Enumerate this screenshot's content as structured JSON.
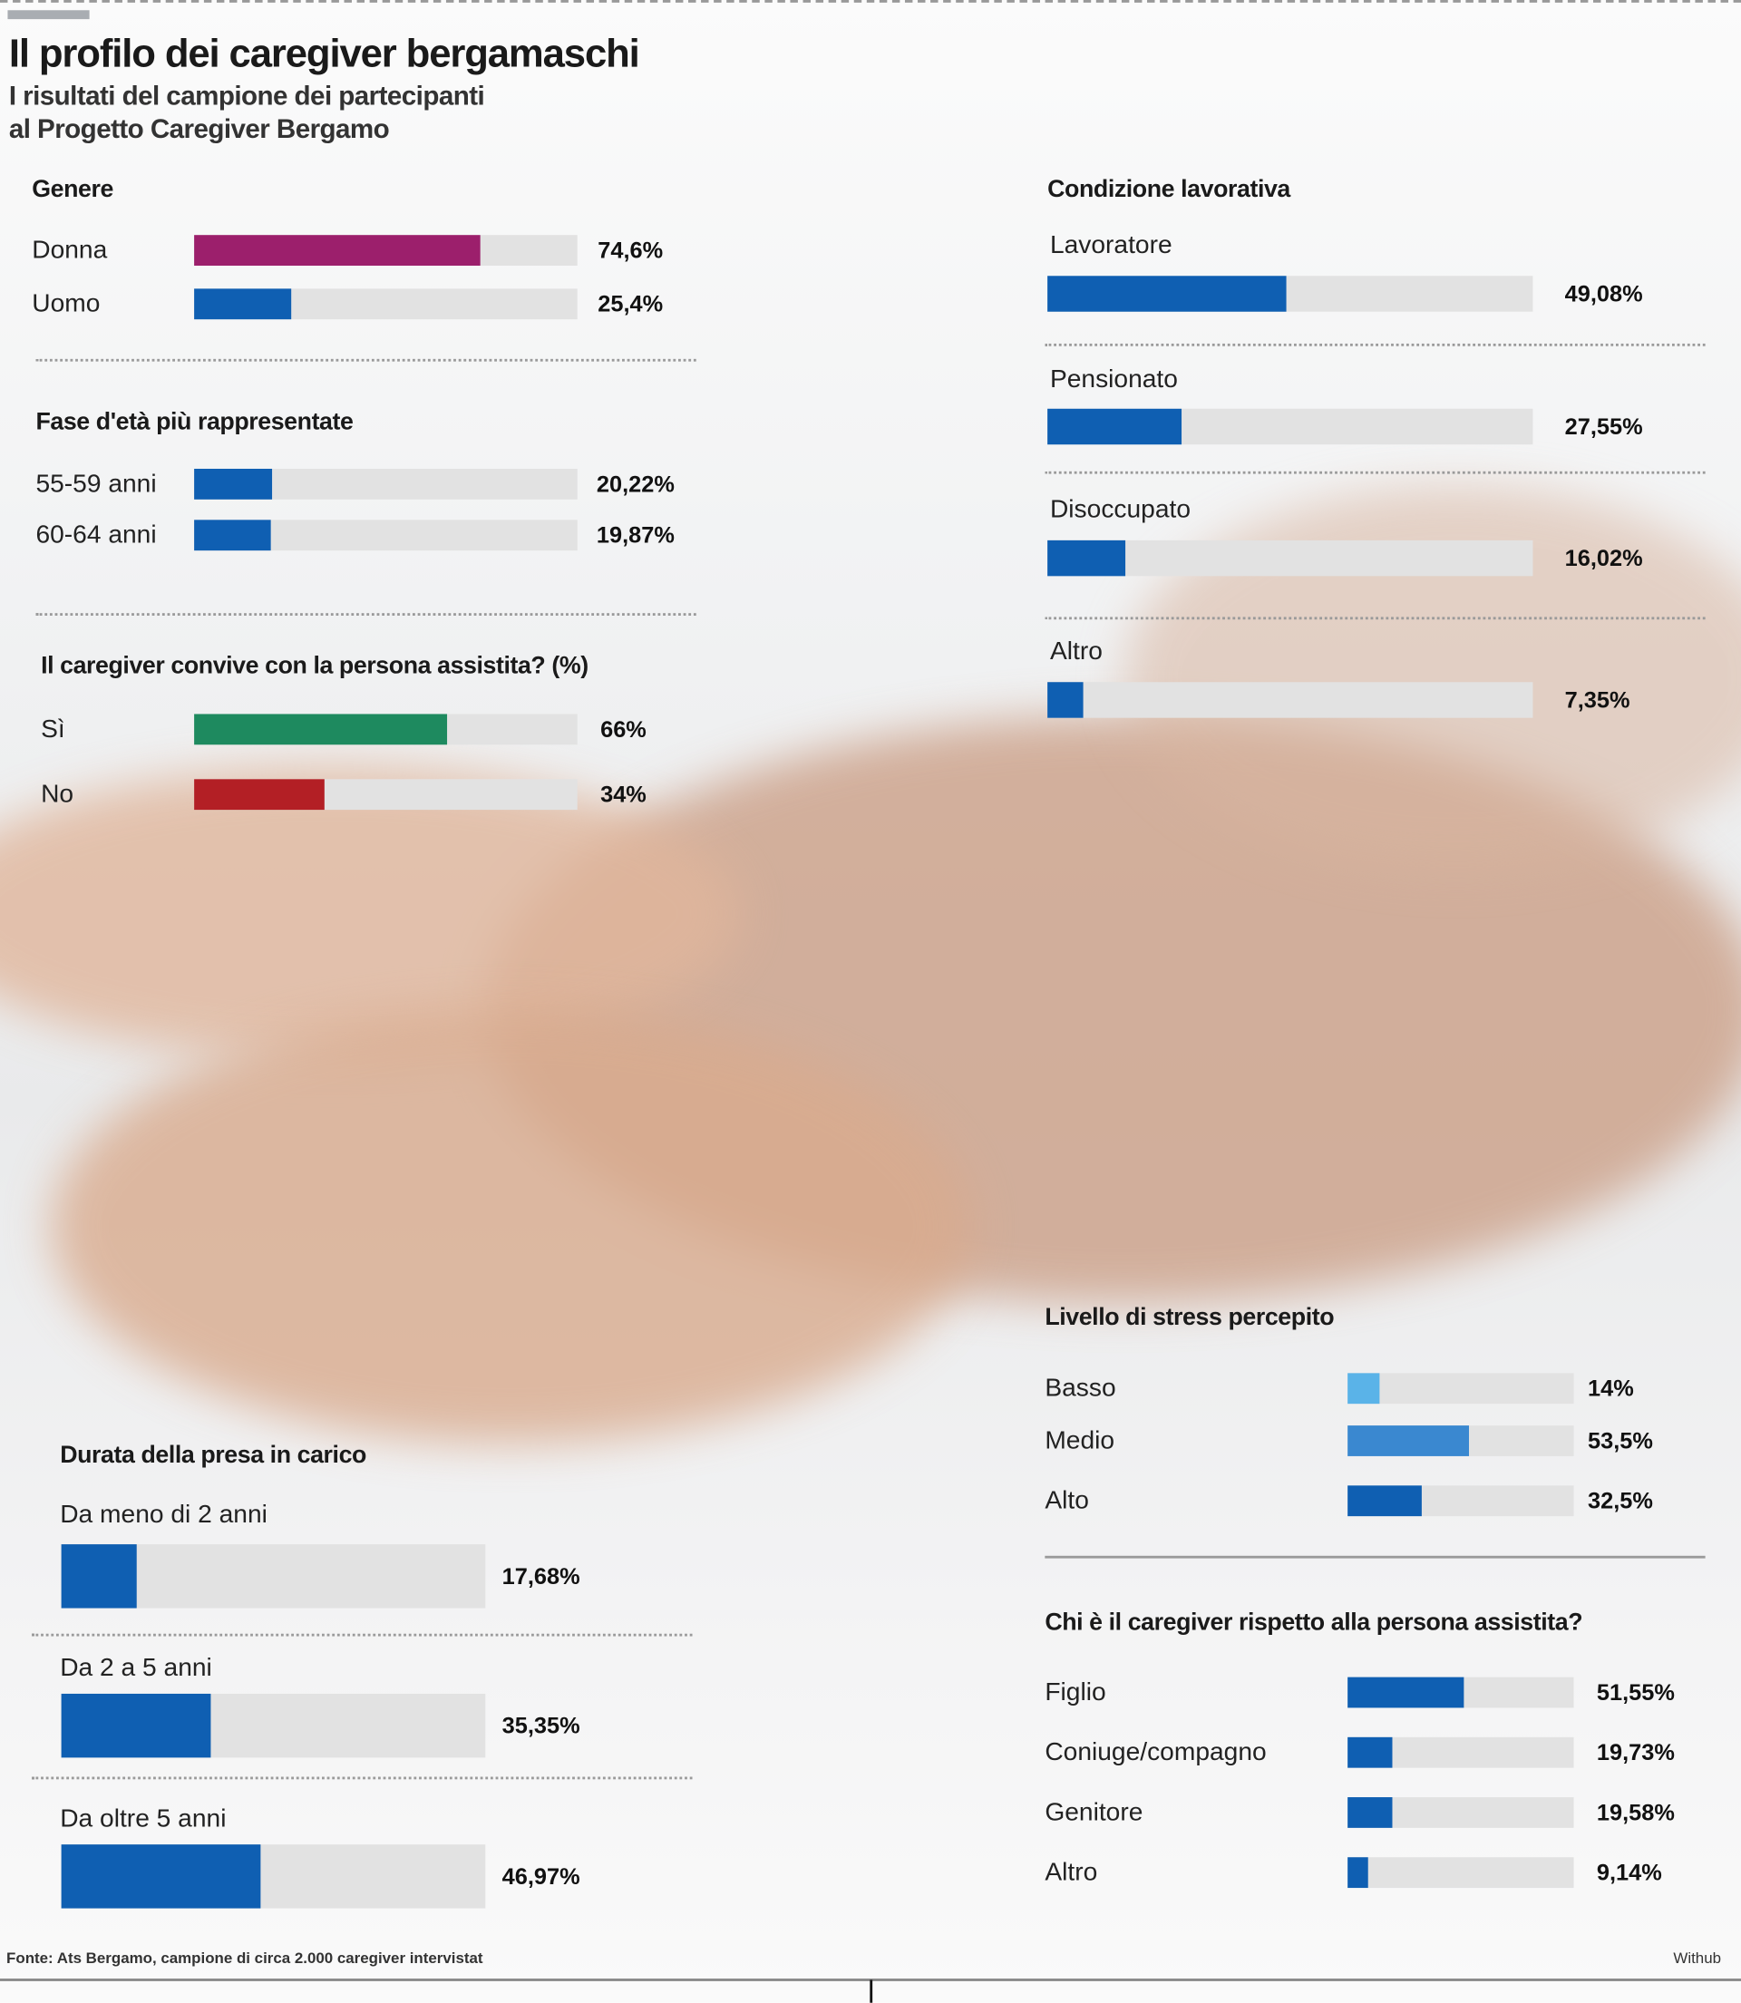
{
  "header": {
    "title": "Il profilo dei caregiver bergamaschi",
    "subtitle_line1": "I risultati del campione dei partecipanti",
    "subtitle_line2": "al Progetto Caregiver Bergamo"
  },
  "footer": {
    "source": "Fonte: Ats Bergamo, campione di circa 2.000 caregiver intervistat",
    "credit": "Withub"
  },
  "colors": {
    "blue": "#0f5fb2",
    "magenta": "#9c1f6c",
    "green": "#1e8a5f",
    "red": "#b31f25",
    "light_blue": "#5ab3e8",
    "mid_blue": "#3a88d0",
    "track": "#e2e2e2"
  },
  "chart_data": [
    {
      "id": "genere",
      "type": "bar",
      "title": "Genere",
      "categories": [
        "Donna",
        "Uomo"
      ],
      "labels": [
        "74,6%",
        "25,4%"
      ],
      "values": [
        74.6,
        25.4
      ],
      "colors": [
        "#9c1f6c",
        "#0f5fb2"
      ],
      "xlim": [
        0,
        100
      ]
    },
    {
      "id": "eta",
      "type": "bar",
      "title": "Fase d'età più rappresentate",
      "categories": [
        "55-59 anni",
        "60-64 anni"
      ],
      "labels": [
        "20,22%",
        "19,87%"
      ],
      "values": [
        20.22,
        19.87
      ],
      "colors": [
        "#0f5fb2",
        "#0f5fb2"
      ],
      "xlim": [
        0,
        100
      ]
    },
    {
      "id": "convive",
      "type": "bar",
      "title": "Il caregiver convive con la persona assistita? (%)",
      "categories": [
        "Sì",
        "No"
      ],
      "labels": [
        "66%",
        "34%"
      ],
      "values": [
        66,
        34
      ],
      "colors": [
        "#1e8a5f",
        "#b31f25"
      ],
      "xlim": [
        0,
        100
      ]
    },
    {
      "id": "lavoro",
      "type": "bar",
      "title": "Condizione lavorativa",
      "categories": [
        "Lavoratore",
        "Pensionato",
        "Disoccupato",
        "Altro"
      ],
      "labels": [
        "49,08%",
        "27,55%",
        "16,02%",
        "7,35%"
      ],
      "values": [
        49.08,
        27.55,
        16.02,
        7.35
      ],
      "colors": [
        "#0f5fb2",
        "#0f5fb2",
        "#0f5fb2",
        "#0f5fb2"
      ],
      "xlim": [
        0,
        100
      ]
    },
    {
      "id": "stress",
      "type": "bar",
      "title": "Livello di stress percepito",
      "categories": [
        "Basso",
        "Medio",
        "Alto"
      ],
      "labels": [
        "14%",
        "53,5%",
        "32,5%"
      ],
      "values": [
        14,
        53.5,
        32.5
      ],
      "colors": [
        "#5ab3e8",
        "#3a88d0",
        "#0f5fb2"
      ],
      "xlim": [
        0,
        100
      ]
    },
    {
      "id": "chi",
      "type": "bar",
      "title": "Chi è il caregiver rispetto alla persona assistita?",
      "categories": [
        "Figlio",
        "Coniuge/compagno",
        "Genitore",
        "Altro"
      ],
      "labels": [
        "51,55%",
        "19,73%",
        "19,58%",
        "9,14%"
      ],
      "values": [
        51.55,
        19.73,
        19.58,
        9.14
      ],
      "colors": [
        "#0f5fb2",
        "#0f5fb2",
        "#0f5fb2",
        "#0f5fb2"
      ],
      "xlim": [
        0,
        100
      ]
    },
    {
      "id": "durata",
      "type": "bar",
      "title": "Durata della presa in carico",
      "categories": [
        "Da meno di 2 anni",
        "Da 2 a 5 anni",
        "Da oltre 5 anni"
      ],
      "labels": [
        "17,68%",
        "35,35%",
        "46,97%"
      ],
      "values": [
        17.68,
        35.35,
        46.97
      ],
      "colors": [
        "#0f5fb2",
        "#0f5fb2",
        "#0f5fb2"
      ],
      "xlim": [
        0,
        100
      ]
    }
  ]
}
